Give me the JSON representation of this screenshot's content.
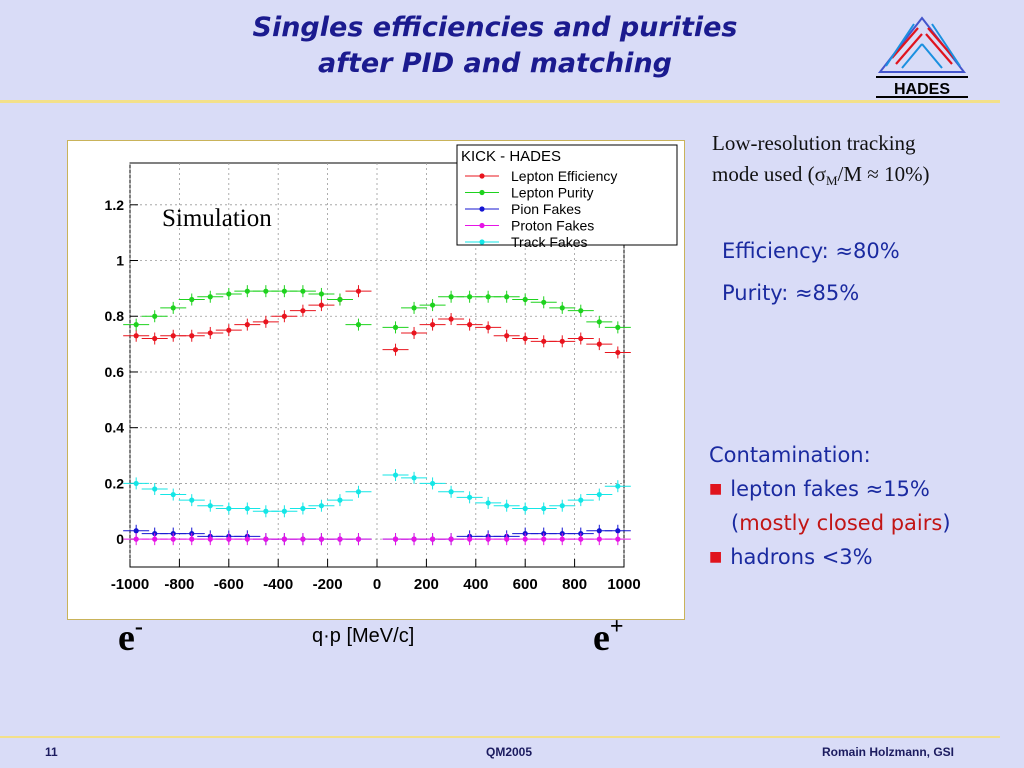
{
  "slide": {
    "title_line1": "Singles efficiencies and purities",
    "title_line2": "after PID and matching",
    "logo_text": "HADES",
    "note_line1": "Low-resolution tracking",
    "note_line2_pre": "mode used  (σ",
    "note_line2_sub": "M",
    "note_line2_post": "/M ≈ 10%)",
    "efficiency": "Efficiency:  ≈80%",
    "purity": "Purity:  ≈85%",
    "contamination_label": "Contamination:",
    "lepton_fakes": "lepton fakes  ≈15%",
    "closed_pairs_open": "(",
    "closed_pairs": "mostly closed pairs",
    "closed_pairs_close": ")",
    "hadrons": "hadrons  <3%",
    "e_minus_base": "e",
    "e_minus_sup": "-",
    "e_plus_base": "e",
    "e_plus_sup": "+",
    "x_unit": "q·p [MeV/c]",
    "footer_left": "11",
    "footer_mid": "QM2005",
    "footer_right": "Romain Holzmann, GSI"
  },
  "chart_data": {
    "type": "scatter",
    "title": "KICK - HADES",
    "annotation": "Simulation",
    "xlabel": "",
    "ylabel": "",
    "xlim": [
      -1000,
      1000
    ],
    "ylim": [
      -0.1,
      1.35
    ],
    "xticks": [
      -1000,
      -800,
      -600,
      -400,
      -200,
      0,
      200,
      400,
      600,
      800,
      1000
    ],
    "xtick_labels": [
      "-1000",
      "-800",
      "-600",
      "-400",
      "-200",
      "0",
      "200",
      "400",
      "600",
      "800",
      "1000"
    ],
    "yticks": [
      0,
      0.2,
      0.4,
      0.6,
      0.8,
      1,
      1.2
    ],
    "ytick_labels": [
      "0",
      "0.2",
      "0.4",
      "0.6",
      "0.8",
      "1",
      "1.2"
    ],
    "grid": true,
    "legend_position": "top-right",
    "x": [
      -975,
      -900,
      -825,
      -750,
      -675,
      -600,
      -525,
      -450,
      -375,
      -300,
      -225,
      -150,
      -75,
      75,
      150,
      225,
      300,
      375,
      450,
      525,
      600,
      675,
      750,
      825,
      900,
      975
    ],
    "series": [
      {
        "name": "Lepton Efficiency",
        "color": "#e8141e",
        "values": [
          0.73,
          0.72,
          0.73,
          0.73,
          0.74,
          0.75,
          0.77,
          0.78,
          0.8,
          0.82,
          0.84,
          0.86,
          0.89,
          0.68,
          0.74,
          0.77,
          0.79,
          0.77,
          0.76,
          0.73,
          0.72,
          0.71,
          0.71,
          0.72,
          0.7,
          0.67
        ]
      },
      {
        "name": "Lepton Purity",
        "color": "#1ed21e",
        "values": [
          0.77,
          0.8,
          0.83,
          0.86,
          0.87,
          0.88,
          0.89,
          0.89,
          0.89,
          0.89,
          0.88,
          0.86,
          0.77,
          0.76,
          0.83,
          0.84,
          0.87,
          0.87,
          0.87,
          0.87,
          0.86,
          0.85,
          0.83,
          0.82,
          0.78,
          0.76
        ]
      },
      {
        "name": "Pion Fakes",
        "color": "#1414d2",
        "values": [
          0.03,
          0.02,
          0.02,
          0.02,
          0.01,
          0.01,
          0.01,
          0.0,
          0.0,
          0.0,
          0.0,
          0.0,
          0.0,
          0.0,
          0.0,
          0.0,
          0.0,
          0.01,
          0.01,
          0.01,
          0.02,
          0.02,
          0.02,
          0.02,
          0.03,
          0.03
        ]
      },
      {
        "name": "Proton Fakes",
        "color": "#e614e6",
        "values": [
          0.0,
          0.0,
          0.0,
          0.0,
          0.0,
          0.0,
          0.0,
          0.0,
          0.0,
          0.0,
          0.0,
          0.0,
          0.0,
          0.0,
          0.0,
          0.0,
          0.0,
          0.0,
          0.0,
          0.0,
          0.0,
          0.0,
          0.0,
          0.0,
          0.0,
          0.0
        ]
      },
      {
        "name": "Track Fakes",
        "color": "#14e6e6",
        "values": [
          0.2,
          0.18,
          0.16,
          0.14,
          0.12,
          0.11,
          0.11,
          0.1,
          0.1,
          0.11,
          0.12,
          0.14,
          0.17,
          0.23,
          0.22,
          0.2,
          0.17,
          0.15,
          0.13,
          0.12,
          0.11,
          0.11,
          0.12,
          0.14,
          0.16,
          0.19
        ]
      }
    ]
  }
}
